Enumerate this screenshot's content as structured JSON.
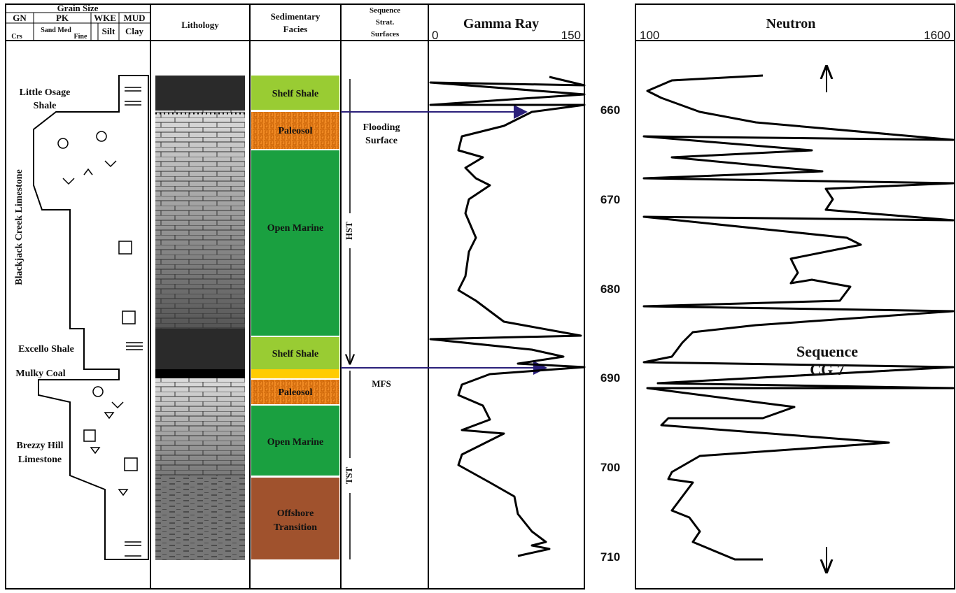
{
  "header": {
    "grain_size": "Grain Size",
    "classes": [
      "GN",
      "PK",
      "WKE",
      "MUD"
    ],
    "sizes": [
      "Crs",
      "Sand Med",
      "Fine",
      "Silt",
      "Clay"
    ],
    "lithology": "Lithology",
    "facies": [
      "Sedimentary",
      "Facies"
    ],
    "sequence": [
      "Sequence",
      "Strat.",
      "Surfaces"
    ],
    "gamma": {
      "title": "Gamma Ray",
      "min": "0",
      "max": "150"
    },
    "neutron": {
      "title": "Neutron",
      "min": "100",
      "max": "1600"
    }
  },
  "formations": [
    {
      "lines": [
        "Little Osage",
        "Shale"
      ]
    },
    {
      "lines": [
        "Blackjack Creek Limestone"
      ]
    },
    {
      "lines": [
        "Excello Shale"
      ]
    },
    {
      "lines": [
        "Mulky Coal"
      ]
    },
    {
      "lines": [
        "Brezzy Hill",
        "Limestone"
      ]
    }
  ],
  "facies": [
    {
      "lines": [
        "Shelf Shale"
      ]
    },
    {
      "lines": [
        "Paleosol"
      ]
    },
    {
      "lines": [
        "Open Marine"
      ]
    },
    {
      "lines": [
        "Shelf Shale"
      ]
    },
    {
      "lines": [
        "Paleosol"
      ]
    },
    {
      "lines": [
        "Open Marine"
      ]
    },
    {
      "lines": [
        "Offshore",
        "Transition"
      ]
    }
  ],
  "surfaces": {
    "flooding": [
      "Flooding",
      "Surface"
    ],
    "hst": "HST",
    "mfs": "MFS",
    "tst": "TST"
  },
  "depths": [
    "660",
    "670",
    "680",
    "690",
    "700",
    "710"
  ],
  "sequence_label": [
    "Sequence",
    "CG 7"
  ]
}
